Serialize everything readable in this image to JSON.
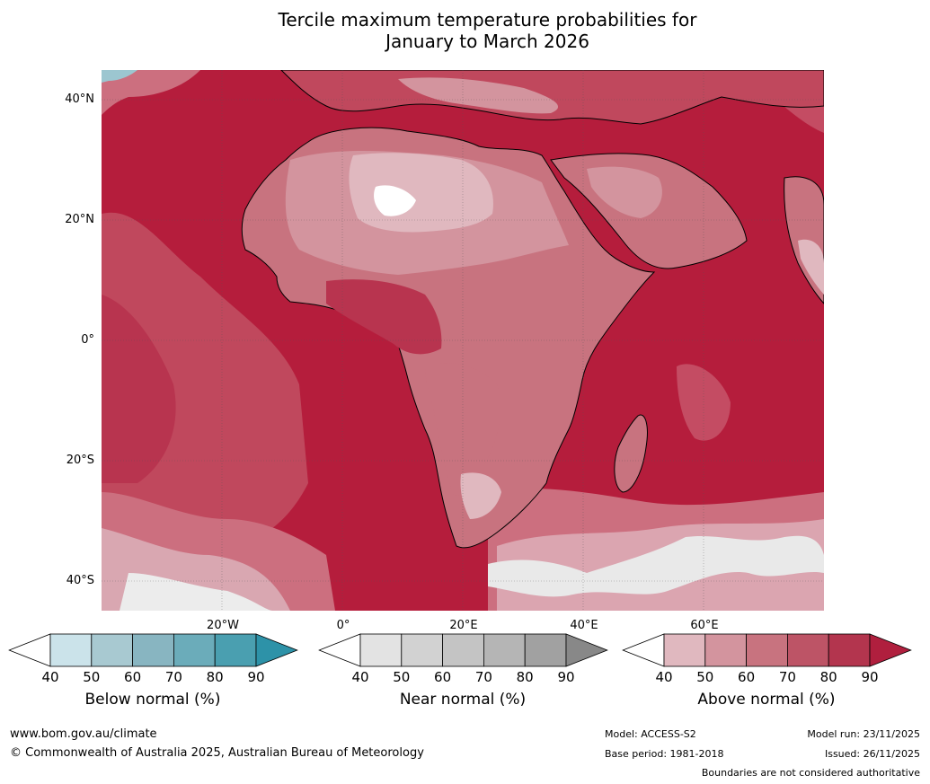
{
  "title": {
    "line1": "Tercile maximum temperature probabilities for",
    "line2": "January to March 2026"
  },
  "map": {
    "lat_labels": [
      "40°N",
      "20°N",
      "0°",
      "20°S",
      "40°S"
    ],
    "lon_labels": [
      "20°W",
      "0°",
      "20°E",
      "40°E",
      "60°E"
    ],
    "ocean_color": "#b51d3c"
  },
  "legends": [
    {
      "label": "Below normal (%)",
      "ticks": [
        "40",
        "50",
        "60",
        "70",
        "80",
        "90"
      ],
      "colors": [
        "#ffffff",
        "#cbe3ea",
        "#a8c9d1",
        "#88b5c1",
        "#6bacba",
        "#4a9fb0",
        "#2d92a8"
      ]
    },
    {
      "label": "Near normal (%)",
      "ticks": [
        "40",
        "50",
        "60",
        "70",
        "80",
        "90"
      ],
      "colors": [
        "#ffffff",
        "#e3e3e3",
        "#d2d2d2",
        "#c4c4c4",
        "#b5b5b5",
        "#a1a1a1",
        "#888888"
      ]
    },
    {
      "label": "Above normal (%)",
      "ticks": [
        "40",
        "50",
        "60",
        "70",
        "80",
        "90"
      ],
      "colors": [
        "#ffffff",
        "#e0b8bf",
        "#d3949e",
        "#c8737f",
        "#bd5466",
        "#b3354e",
        "#b01f3e"
      ]
    }
  ],
  "footer": {
    "url": "www.bom.gov.au/climate",
    "copyright": "© Commonwealth of Australia 2025, Australian Bureau of Meteorology",
    "model": "Model: ACCESS-S2",
    "base_period": "Base period: 1981-2018",
    "model_run": "Model run: 23/11/2025",
    "issued": "Issued: 26/11/2025",
    "disclaimer": "Boundaries are not considered authoritative"
  }
}
